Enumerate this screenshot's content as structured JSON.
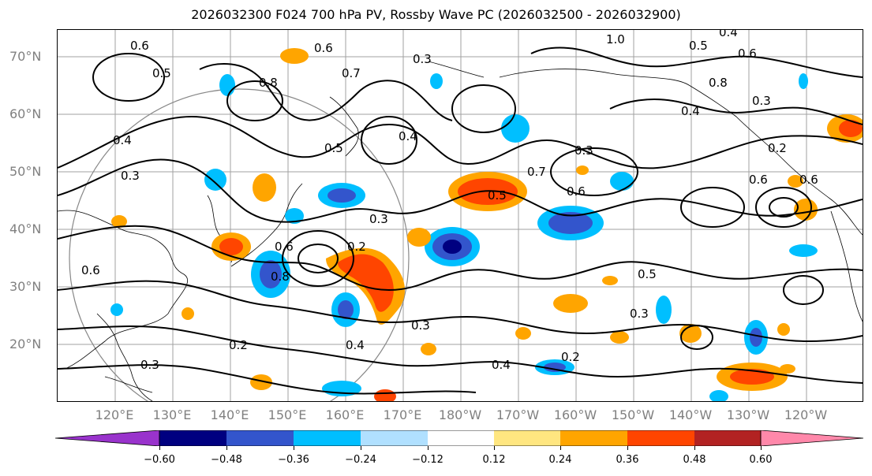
{
  "title": "2026032300 F024 700 hPa PV, Rossby Wave PC (2026032500 - 2026032900)",
  "lat_labels": [
    "70°N",
    "60°N",
    "50°N",
    "40°N",
    "30°N",
    "20°N"
  ],
  "lon_labels": [
    "120°E",
    "130°E",
    "140°E",
    "150°E",
    "160°E",
    "170°E",
    "180°W",
    "170°W",
    "160°W",
    "150°W",
    "140°W",
    "130°W",
    "120°W"
  ],
  "contour_labels": [
    "0.6",
    "0.8",
    "0.5",
    "0.4",
    "0.3",
    "0.7",
    "0.6",
    "0.3",
    "1.0",
    "0.4",
    "0.5",
    "0.6",
    "0.8",
    "0.4",
    "0.2",
    "0.6",
    "0.3",
    "0.4",
    "0.5",
    "0.3",
    "0.2",
    "0.6",
    "0.8",
    "0.5",
    "0.3",
    "0.6",
    "0.7",
    "0.2",
    "0.4",
    "0.6",
    "0.3",
    "0.4",
    "0.3",
    "0.6",
    "0.2",
    "0.5",
    "0.3"
  ],
  "colorbar": {
    "colors": [
      "#9933cc",
      "#000080",
      "#3355cc",
      "#00bfff",
      "#b0e0ff",
      "#ffffff",
      "#ffe680",
      "#ffa500",
      "#ff4500",
      "#b22222",
      "#ff88aa"
    ],
    "tick_labels": [
      "−0.60",
      "−0.48",
      "−0.36",
      "−0.24",
      "−0.12",
      "0.12",
      "0.24",
      "0.36",
      "0.48",
      "0.60"
    ]
  }
}
